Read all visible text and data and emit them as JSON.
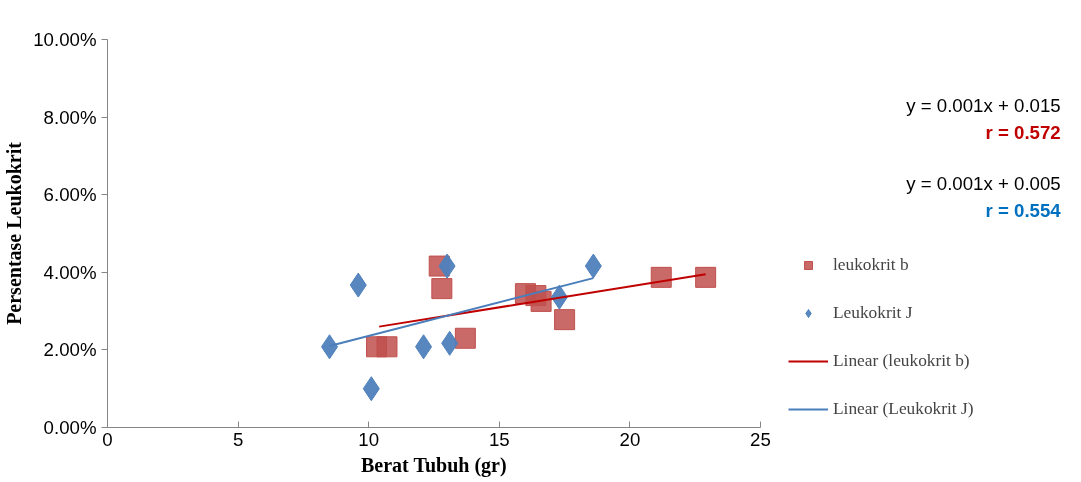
{
  "chart_data": {
    "type": "scatter",
    "xlabel": "Berat Tubuh (gr)",
    "ylabel": "Persentase Leukokrit",
    "xlim": [
      0,
      25
    ],
    "xticks": [
      0,
      5,
      10,
      15,
      20,
      25
    ],
    "ylim": [
      0,
      10
    ],
    "yticks": [
      {
        "value": 0,
        "label": "0.00%"
      },
      {
        "value": 2,
        "label": "2.00%"
      },
      {
        "value": 4,
        "label": "4.00%"
      },
      {
        "value": 6,
        "label": "6.00%"
      },
      {
        "value": 8,
        "label": "8.00%"
      },
      {
        "value": 10,
        "label": "10.00%"
      }
    ],
    "grid": false,
    "legend": "right",
    "series": [
      {
        "name": "leukokrit b",
        "marker": "square",
        "color": "#c0504d",
        "x": [
          10.3,
          10.7,
          12.7,
          12.8,
          13.7,
          16.0,
          16.4,
          16.6,
          17.5,
          21.2,
          22.9
        ],
        "values": [
          2.08,
          2.08,
          4.16,
          3.58,
          2.3,
          3.45,
          3.4,
          3.25,
          2.78,
          3.87,
          3.87
        ]
      },
      {
        "name": "Leukokrit J",
        "marker": "diamond",
        "color": "#4f81bd",
        "x": [
          8.5,
          9.6,
          10.1,
          12.1,
          13.0,
          13.1,
          17.3,
          18.6
        ],
        "values": [
          2.08,
          3.67,
          1.0,
          2.08,
          4.16,
          2.17,
          3.36,
          4.16
        ]
      },
      {
        "name": "Linear (leukokrit b)",
        "type": "line",
        "line_style": "solid",
        "color": "#c00000",
        "x": [
          10.4,
          22.9
        ],
        "values": [
          2.6,
          3.95
        ]
      },
      {
        "name": "Linear (Leukokrit J)",
        "type": "line",
        "line_style": "solid",
        "color": "#4a7ebb",
        "x": [
          8.5,
          18.6
        ],
        "values": [
          2.1,
          3.85
        ]
      }
    ],
    "annotations": [
      "y = 0.001x + 0.015",
      "r = 0.572",
      "y = 0.001x + 0.005",
      "r = 0.554"
    ]
  }
}
